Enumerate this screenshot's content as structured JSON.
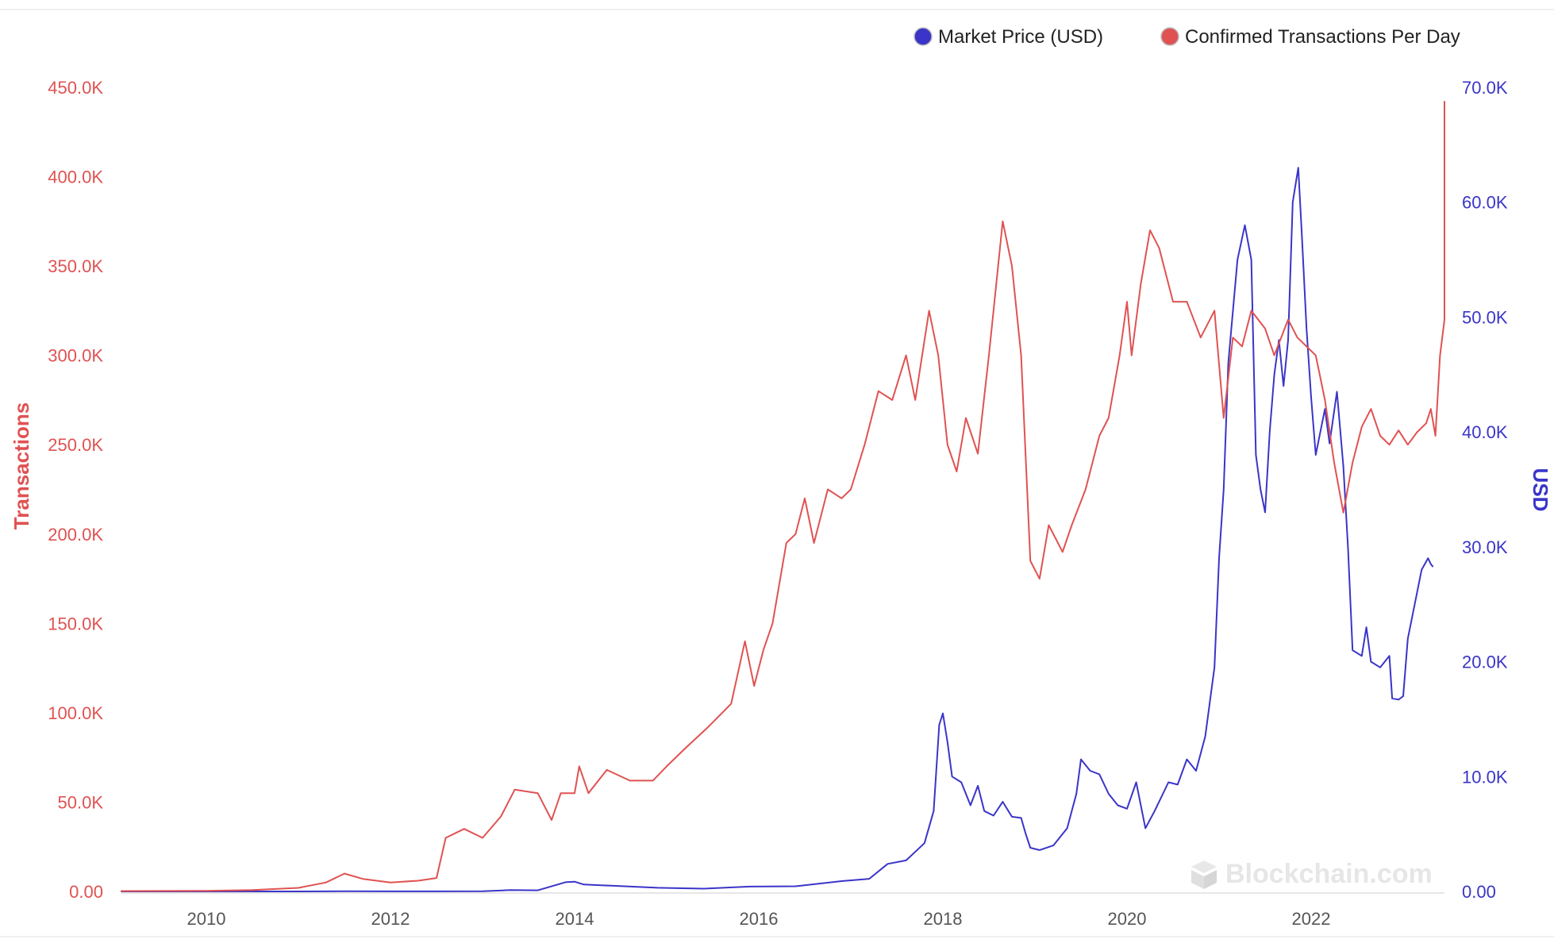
{
  "chart_data": {
    "type": "line",
    "x_unit": "year",
    "x_ticks": [
      "2010",
      "2012",
      "2014",
      "2016",
      "2018",
      "2020",
      "2022"
    ],
    "x_range": [
      2009.0,
      2023.35
    ],
    "left_axis": {
      "label": "Transactions",
      "color": "#e05252",
      "range": [
        0,
        450000
      ],
      "ticks": [
        "0.00",
        "50.0K",
        "100.0K",
        "150.0K",
        "200.0K",
        "250.0K",
        "300.0K",
        "350.0K",
        "400.0K",
        "450.0K"
      ]
    },
    "right_axis": {
      "label": "USD",
      "color": "#3a35c8",
      "range": [
        0,
        70000
      ],
      "ticks": [
        "0.00",
        "10.0K",
        "20.0K",
        "30.0K",
        "40.0K",
        "50.0K",
        "60.0K",
        "70.0K"
      ]
    },
    "grid": false,
    "legend_position": "top-right",
    "series": [
      {
        "name": "Market Price (USD)",
        "axis": "right",
        "color": "#3a35c8",
        "points": [
          [
            2009.0,
            0
          ],
          [
            2010.5,
            0
          ],
          [
            2011.0,
            1
          ],
          [
            2011.5,
            15
          ],
          [
            2012.0,
            6
          ],
          [
            2012.5,
            7
          ],
          [
            2013.0,
            20
          ],
          [
            2013.3,
            120
          ],
          [
            2013.6,
            100
          ],
          [
            2013.9,
            800
          ],
          [
            2014.0,
            850
          ],
          [
            2014.1,
            600
          ],
          [
            2014.4,
            500
          ],
          [
            2014.9,
            320
          ],
          [
            2015.4,
            240
          ],
          [
            2015.9,
            420
          ],
          [
            2016.4,
            450
          ],
          [
            2016.9,
            900
          ],
          [
            2017.2,
            1100
          ],
          [
            2017.4,
            2400
          ],
          [
            2017.6,
            2700
          ],
          [
            2017.8,
            4200
          ],
          [
            2017.9,
            7000
          ],
          [
            2017.96,
            14500
          ],
          [
            2018.0,
            15500
          ],
          [
            2018.05,
            13000
          ],
          [
            2018.1,
            10000
          ],
          [
            2018.2,
            9500
          ],
          [
            2018.3,
            7500
          ],
          [
            2018.38,
            9200
          ],
          [
            2018.45,
            7000
          ],
          [
            2018.55,
            6600
          ],
          [
            2018.65,
            7800
          ],
          [
            2018.75,
            6500
          ],
          [
            2018.85,
            6400
          ],
          [
            2018.9,
            5000
          ],
          [
            2018.95,
            3800
          ],
          [
            2019.05,
            3600
          ],
          [
            2019.2,
            4000
          ],
          [
            2019.35,
            5500
          ],
          [
            2019.45,
            8500
          ],
          [
            2019.5,
            11500
          ],
          [
            2019.6,
            10500
          ],
          [
            2019.7,
            10200
          ],
          [
            2019.8,
            8500
          ],
          [
            2019.9,
            7500
          ],
          [
            2020.0,
            7200
          ],
          [
            2020.1,
            9500
          ],
          [
            2020.2,
            5500
          ],
          [
            2020.3,
            7000
          ],
          [
            2020.45,
            9500
          ],
          [
            2020.55,
            9300
          ],
          [
            2020.65,
            11500
          ],
          [
            2020.75,
            10500
          ],
          [
            2020.85,
            13500
          ],
          [
            2020.95,
            19500
          ],
          [
            2021.0,
            29000
          ],
          [
            2021.05,
            35000
          ],
          [
            2021.1,
            46000
          ],
          [
            2021.2,
            55000
          ],
          [
            2021.28,
            58000
          ],
          [
            2021.35,
            55000
          ],
          [
            2021.4,
            38000
          ],
          [
            2021.45,
            35000
          ],
          [
            2021.5,
            33000
          ],
          [
            2021.55,
            40000
          ],
          [
            2021.6,
            45000
          ],
          [
            2021.65,
            48000
          ],
          [
            2021.7,
            44000
          ],
          [
            2021.75,
            48000
          ],
          [
            2021.8,
            60000
          ],
          [
            2021.86,
            63000
          ],
          [
            2021.9,
            57000
          ],
          [
            2021.95,
            49000
          ],
          [
            2022.0,
            43000
          ],
          [
            2022.05,
            38000
          ],
          [
            2022.1,
            40000
          ],
          [
            2022.15,
            42000
          ],
          [
            2022.2,
            39000
          ],
          [
            2022.28,
            43500
          ],
          [
            2022.35,
            37000
          ],
          [
            2022.4,
            30000
          ],
          [
            2022.45,
            21000
          ],
          [
            2022.55,
            20500
          ],
          [
            2022.6,
            23000
          ],
          [
            2022.65,
            20000
          ],
          [
            2022.75,
            19500
          ],
          [
            2022.85,
            20500
          ],
          [
            2022.88,
            16800
          ],
          [
            2022.95,
            16700
          ],
          [
            2023.0,
            17000
          ],
          [
            2023.05,
            22000
          ],
          [
            2023.1,
            24000
          ],
          [
            2023.2,
            28000
          ],
          [
            2023.27,
            29000
          ],
          [
            2023.3,
            28500
          ],
          [
            2023.32,
            28300
          ]
        ]
      },
      {
        "name": "Confirmed Transactions Per Day",
        "axis": "left",
        "color": "#e05252",
        "points": [
          [
            2009.0,
            200
          ],
          [
            2010.0,
            300
          ],
          [
            2010.5,
            800
          ],
          [
            2011.0,
            2000
          ],
          [
            2011.3,
            5000
          ],
          [
            2011.5,
            10000
          ],
          [
            2011.7,
            7000
          ],
          [
            2012.0,
            5000
          ],
          [
            2012.3,
            6000
          ],
          [
            2012.5,
            7500
          ],
          [
            2012.6,
            30000
          ],
          [
            2012.8,
            35000
          ],
          [
            2013.0,
            30000
          ],
          [
            2013.2,
            42000
          ],
          [
            2013.35,
            57000
          ],
          [
            2013.6,
            55000
          ],
          [
            2013.75,
            40000
          ],
          [
            2013.85,
            55000
          ],
          [
            2014.0,
            55000
          ],
          [
            2014.05,
            70000
          ],
          [
            2014.15,
            55000
          ],
          [
            2014.35,
            68000
          ],
          [
            2014.6,
            62000
          ],
          [
            2014.85,
            62000
          ],
          [
            2015.0,
            70000
          ],
          [
            2015.2,
            80000
          ],
          [
            2015.45,
            92000
          ],
          [
            2015.7,
            105000
          ],
          [
            2015.85,
            140000
          ],
          [
            2015.95,
            115000
          ],
          [
            2016.05,
            135000
          ],
          [
            2016.15,
            150000
          ],
          [
            2016.3,
            195000
          ],
          [
            2016.4,
            200000
          ],
          [
            2016.5,
            220000
          ],
          [
            2016.6,
            195000
          ],
          [
            2016.75,
            225000
          ],
          [
            2016.9,
            220000
          ],
          [
            2017.0,
            225000
          ],
          [
            2017.15,
            250000
          ],
          [
            2017.3,
            280000
          ],
          [
            2017.45,
            275000
          ],
          [
            2017.6,
            300000
          ],
          [
            2017.7,
            275000
          ],
          [
            2017.85,
            325000
          ],
          [
            2017.95,
            300000
          ],
          [
            2018.05,
            250000
          ],
          [
            2018.15,
            235000
          ],
          [
            2018.25,
            265000
          ],
          [
            2018.38,
            245000
          ],
          [
            2018.5,
            300000
          ],
          [
            2018.65,
            375000
          ],
          [
            2018.75,
            350000
          ],
          [
            2018.85,
            300000
          ],
          [
            2018.95,
            185000
          ],
          [
            2019.05,
            175000
          ],
          [
            2019.15,
            205000
          ],
          [
            2019.3,
            190000
          ],
          [
            2019.4,
            205000
          ],
          [
            2019.55,
            225000
          ],
          [
            2019.7,
            255000
          ],
          [
            2019.8,
            265000
          ],
          [
            2019.92,
            300000
          ],
          [
            2020.0,
            330000
          ],
          [
            2020.05,
            300000
          ],
          [
            2020.15,
            340000
          ],
          [
            2020.25,
            370000
          ],
          [
            2020.35,
            360000
          ],
          [
            2020.5,
            330000
          ],
          [
            2020.65,
            330000
          ],
          [
            2020.8,
            310000
          ],
          [
            2020.95,
            325000
          ],
          [
            2021.05,
            265000
          ],
          [
            2021.15,
            310000
          ],
          [
            2021.25,
            305000
          ],
          [
            2021.35,
            325000
          ],
          [
            2021.5,
            315000
          ],
          [
            2021.6,
            300000
          ],
          [
            2021.75,
            320000
          ],
          [
            2021.85,
            310000
          ],
          [
            2021.95,
            305000
          ],
          [
            2022.05,
            300000
          ],
          [
            2022.15,
            275000
          ],
          [
            2022.25,
            240000
          ],
          [
            2022.35,
            212000
          ],
          [
            2022.45,
            240000
          ],
          [
            2022.55,
            260000
          ],
          [
            2022.65,
            270000
          ],
          [
            2022.75,
            255000
          ],
          [
            2022.85,
            250000
          ],
          [
            2022.95,
            258000
          ],
          [
            2023.05,
            250000
          ],
          [
            2023.15,
            257000
          ],
          [
            2023.25,
            262000
          ],
          [
            2023.3,
            270000
          ],
          [
            2023.35,
            255000
          ],
          [
            2023.4,
            300000
          ],
          [
            2023.45,
            320000
          ],
          [
            2023.5,
            320000
          ],
          [
            2023.55,
            330000
          ],
          [
            2023.6,
            430000
          ],
          [
            2023.62,
            442000
          ]
        ]
      }
    ]
  },
  "legend": {
    "items": [
      {
        "label": "Market Price (USD)",
        "color": "#3a35c8"
      },
      {
        "label": "Confirmed Transactions Per Day",
        "color": "#e05252"
      }
    ]
  },
  "watermark": {
    "text": "Blockchain.com"
  }
}
